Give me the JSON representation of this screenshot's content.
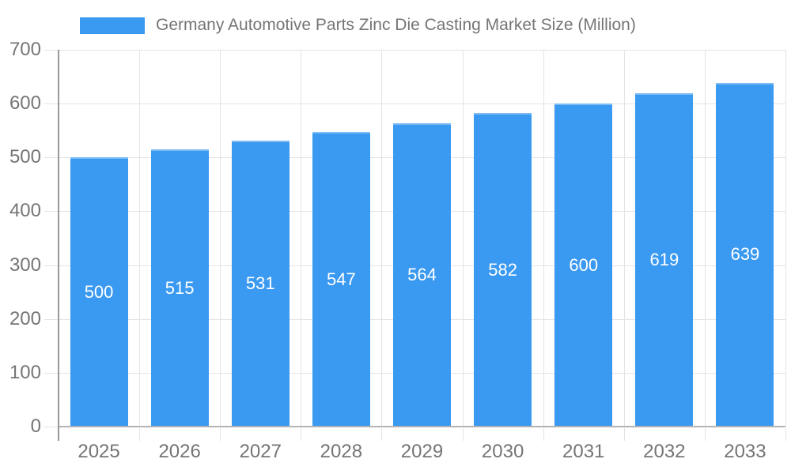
{
  "legend": {
    "label": "Germany Automotive Parts Zinc Die Casting Market Size (Million)"
  },
  "colors": {
    "bar": "#3A99F0",
    "legend_swatch": "#3A99F0",
    "grid_line": "#E4E4E4",
    "x_axis_line": "#B3B3B3",
    "y_axis_line": "#999999",
    "axis_label_text": "#757575",
    "title_text": "#757575",
    "value_label_text": "#FFFFFF",
    "background": "#FFFFFF"
  },
  "chart_data": {
    "type": "bar",
    "title": "Germany Automotive Parts Zinc Die Casting Market Size (Million)",
    "categories": [
      "2025",
      "2026",
      "2027",
      "2028",
      "2029",
      "2030",
      "2031",
      "2032",
      "2033"
    ],
    "values": [
      500,
      515,
      531,
      547,
      564,
      582,
      600,
      619,
      639
    ],
    "xlabel": "",
    "ylabel": "",
    "ylim": [
      0,
      700
    ],
    "yticks": [
      0,
      100,
      200,
      300,
      400,
      500,
      600,
      700
    ],
    "grid": true,
    "legend_position": "top-left",
    "value_labels_position": "inside-center"
  }
}
